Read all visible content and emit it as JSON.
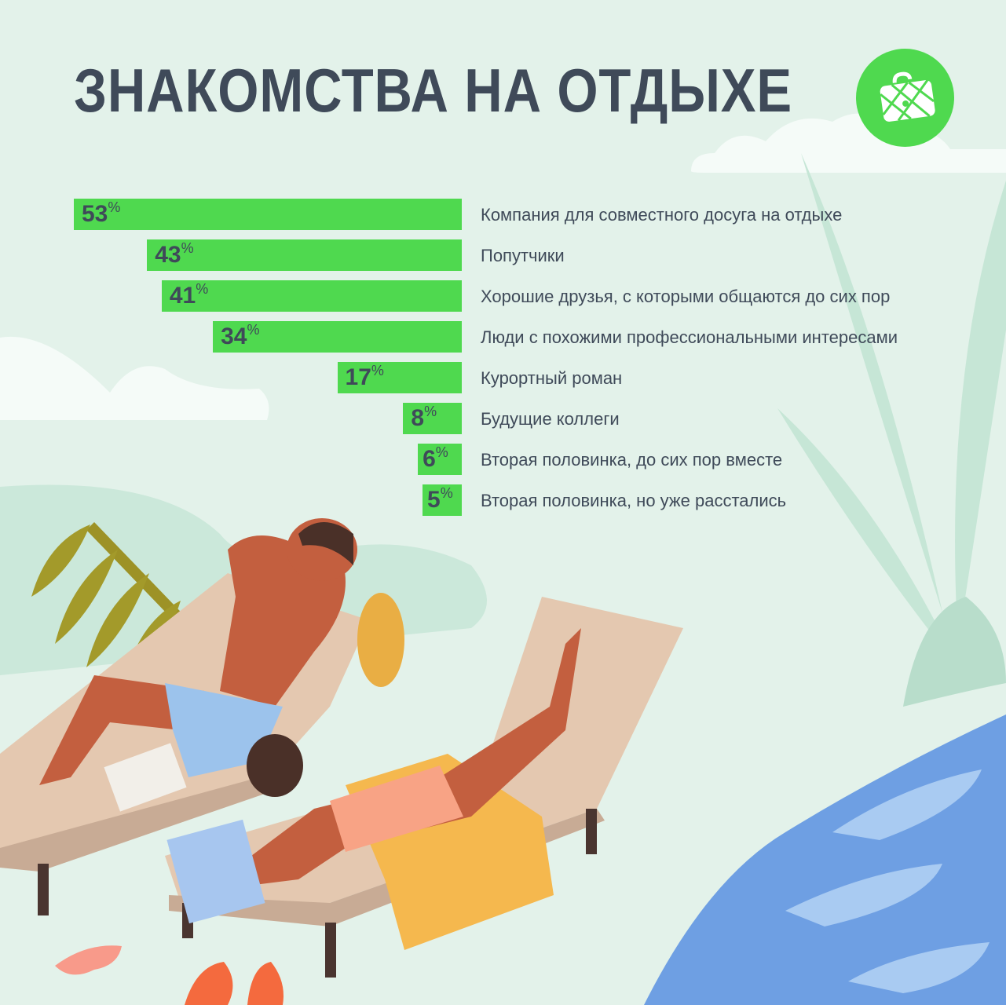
{
  "chart_data": {
    "type": "bar",
    "orientation": "horizontal",
    "title": "ЗНАКОМСТВА НА ОТДЫХЕ",
    "unit": "%",
    "categories": [
      "Компания для совместного досуга на отдыхе",
      "Попутчики",
      "Хорошие друзья, с которыми общаются до сих пор",
      "Люди с похожими профессиональными интересами",
      "Курортный роман",
      "Будущие коллеги",
      "Вторая половинка, до сих пор вместе",
      "Вторая половинка, но уже расстались"
    ],
    "values": [
      53,
      43,
      41,
      34,
      17,
      8,
      6,
      5
    ],
    "bar_color": "#4fd94f",
    "text_color": "#3f4a59",
    "grid": false,
    "axes_visible": false
  },
  "logo": {
    "icon": "suitcase-map-icon",
    "color": "#4fd94f"
  },
  "background_color": "#e3f2ea"
}
